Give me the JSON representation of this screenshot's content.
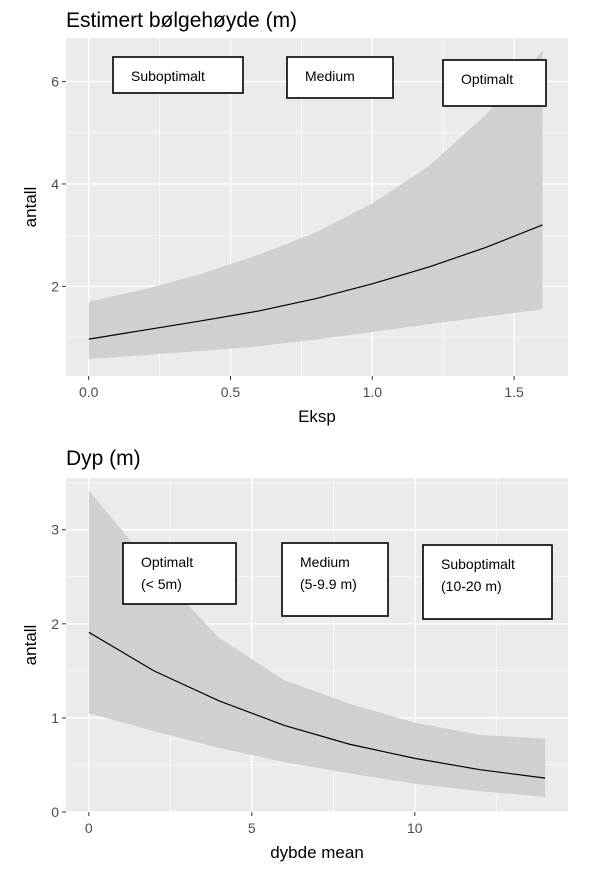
{
  "chart_data": [
    {
      "type": "line",
      "title": "Estimert bølgehøyde (m)",
      "xlabel": "Eksp",
      "ylabel": "antall",
      "xlim": [
        -0.08,
        1.69
      ],
      "ylim": [
        0.25,
        6.85
      ],
      "grid": true,
      "x_ticks": [
        0.0,
        0.5,
        1.0,
        1.5
      ],
      "x_tick_labels": [
        "0.0",
        "0.5",
        "1.0",
        "1.5"
      ],
      "y_ticks": [
        2,
        4,
        6
      ],
      "y_tick_labels": [
        "2",
        "4",
        "6"
      ],
      "series": [
        {
          "x": [
            0.0,
            0.2,
            0.4,
            0.6,
            0.8,
            1.0,
            1.2,
            1.4,
            1.6
          ],
          "y": [
            0.97,
            1.15,
            1.33,
            1.52,
            1.76,
            2.05,
            2.38,
            2.76,
            3.2
          ],
          "lower": [
            0.58,
            0.66,
            0.74,
            0.83,
            0.96,
            1.11,
            1.26,
            1.41,
            1.55
          ],
          "upper": [
            1.7,
            1.95,
            2.25,
            2.62,
            3.05,
            3.62,
            4.35,
            5.35,
            6.6
          ]
        }
      ],
      "annotations": [
        {
          "lines": [
            "Suboptimalt"
          ]
        },
        {
          "lines": [
            "Medium"
          ]
        },
        {
          "lines": [
            "Optimalt"
          ]
        }
      ]
    },
    {
      "type": "line",
      "title": "Dyp (m)",
      "xlabel": "dybde mean",
      "ylabel": "antall",
      "xlim": [
        -0.7,
        14.7
      ],
      "ylim": [
        0,
        3.55
      ],
      "grid": true,
      "x_ticks": [
        0,
        5,
        10
      ],
      "x_tick_labels": [
        "0",
        "5",
        "10"
      ],
      "y_ticks": [
        0,
        1,
        2,
        3
      ],
      "y_tick_labels": [
        "0",
        "1",
        "2",
        "3"
      ],
      "series": [
        {
          "x": [
            0,
            2,
            4,
            6,
            8,
            10,
            12,
            14
          ],
          "y": [
            1.91,
            1.5,
            1.18,
            0.92,
            0.72,
            0.57,
            0.45,
            0.36
          ],
          "lower": [
            1.05,
            0.86,
            0.68,
            0.53,
            0.41,
            0.3,
            0.22,
            0.16
          ],
          "upper": [
            3.42,
            2.58,
            1.85,
            1.4,
            1.15,
            0.95,
            0.82,
            0.78
          ]
        }
      ],
      "annotations": [
        {
          "lines": [
            "Optimalt",
            "(< 5m)"
          ]
        },
        {
          "lines": [
            "Medium",
            "(5-9.9 m)"
          ]
        },
        {
          "lines": [
            "Suboptimalt",
            "(10-20 m)"
          ]
        }
      ]
    }
  ],
  "colors": {
    "panel": "#ebebeb",
    "grid": "#ffffff",
    "ribbon": "#d0d0d0",
    "line": "#000000",
    "tick_text": "#4d4d4d"
  }
}
